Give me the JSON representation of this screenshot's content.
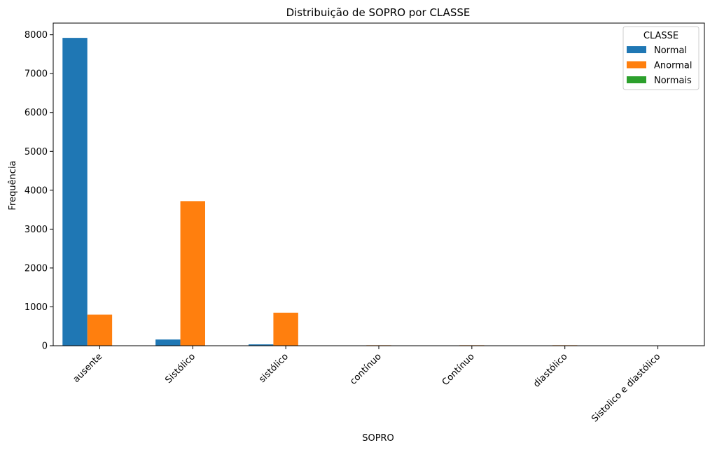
{
  "chart_data": {
    "type": "bar",
    "title": "Distribuição de SOPRO por CLASSE",
    "xlabel": "SOPRO",
    "ylabel": "Frequência",
    "categories": [
      "ausente",
      "Sistólico",
      "sistólico",
      "contínuo",
      "Contínuo",
      "diastólico",
      "Sistolico e diastólico"
    ],
    "series": [
      {
        "name": "Normal",
        "color": "#1f77b4",
        "values": [
          7920,
          160,
          35,
          0,
          0,
          0,
          0
        ]
      },
      {
        "name": "Anormal",
        "color": "#ff7f0e",
        "values": [
          800,
          3720,
          850,
          12,
          12,
          12,
          2
        ]
      },
      {
        "name": "Normais",
        "color": "#2ca02c",
        "values": [
          0,
          0,
          0,
          0,
          0,
          0,
          0
        ]
      }
    ],
    "ylim": [
      0,
      8300
    ],
    "yticks": [
      0,
      1000,
      2000,
      3000,
      4000,
      5000,
      6000,
      7000,
      8000
    ],
    "legend": {
      "title": "CLASSE",
      "placement": "top-right"
    },
    "grid": false
  }
}
